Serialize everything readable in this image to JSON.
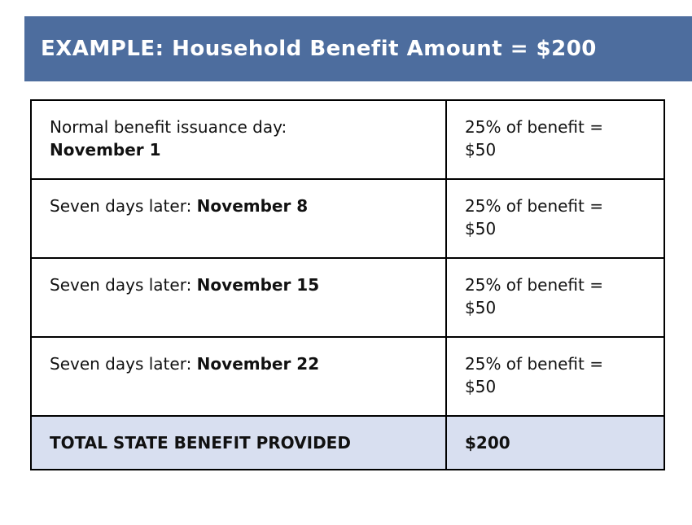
{
  "banner": {
    "title": "EXAMPLE: Household Benefit Amount = $200"
  },
  "table": {
    "rows": [
      {
        "label": "Normal benefit issuance day:",
        "date": "November 1",
        "amount_line1": "25% of benefit =",
        "amount_line2": "$50"
      },
      {
        "label": "Seven days later:",
        "date": "November 8",
        "amount_line1": "25% of benefit =",
        "amount_line2": "$50"
      },
      {
        "label": "Seven days later:",
        "date": "November 15",
        "amount_line1": "25% of benefit =",
        "amount_line2": "$50"
      },
      {
        "label": "Seven days later:",
        "date": "November 22",
        "amount_line1": "25% of benefit =",
        "amount_line2": "$50"
      }
    ],
    "total": {
      "label": "TOTAL STATE BENEFIT PROVIDED",
      "value": "$200"
    }
  },
  "colors": {
    "banner_bg": "#4d6d9e",
    "total_row_bg": "#d8dff0",
    "border": "#000000"
  }
}
